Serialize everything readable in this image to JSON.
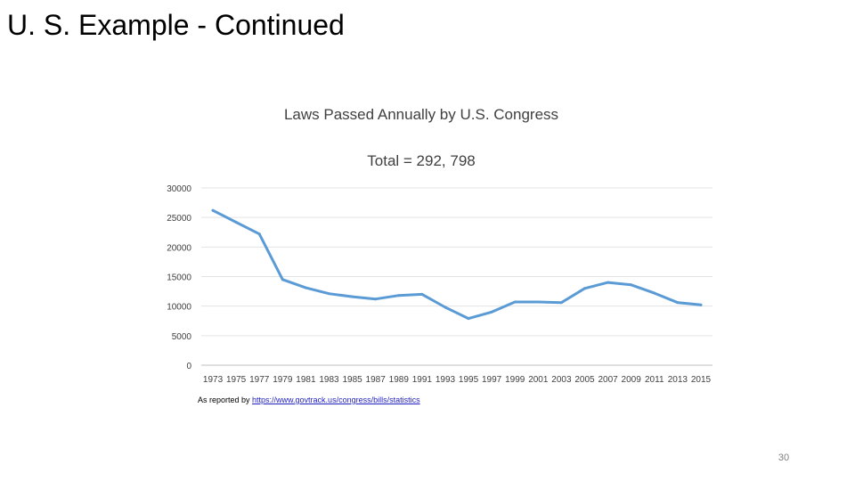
{
  "slide": {
    "title": "U. S. Example - Continued",
    "page_number": "30"
  },
  "chart_data": {
    "type": "line",
    "title": "Laws Passed Annually by U.S. Congress",
    "subtitle": "Total = 292, 798",
    "xlabel": "",
    "ylabel": "",
    "ylim": [
      0,
      30000
    ],
    "y_ticks": [
      "0",
      "5000",
      "10000",
      "15000",
      "20000",
      "25000",
      "30000"
    ],
    "grid": true,
    "legend": "none",
    "line_color": "#5b9bd5",
    "x": [
      "1973",
      "1975",
      "1977",
      "1979",
      "1981",
      "1983",
      "1985",
      "1987",
      "1989",
      "1991",
      "1993",
      "1995",
      "1997",
      "1999",
      "2001",
      "2003",
      "2005",
      "2007",
      "2009",
      "2011",
      "2013",
      "2015"
    ],
    "series": [
      {
        "values": [
          26200,
          24200,
          22200,
          14500,
          13100,
          12100,
          11600,
          11200,
          11800,
          12000,
          9800,
          7900,
          9000,
          10700,
          10700,
          10600,
          13000,
          14000,
          13600,
          12200,
          10600,
          10200
        ]
      }
    ]
  },
  "source_note": {
    "prefix": "As reported by ",
    "link_text": "https://www.govtrack.us/congress/bills/statistics"
  }
}
